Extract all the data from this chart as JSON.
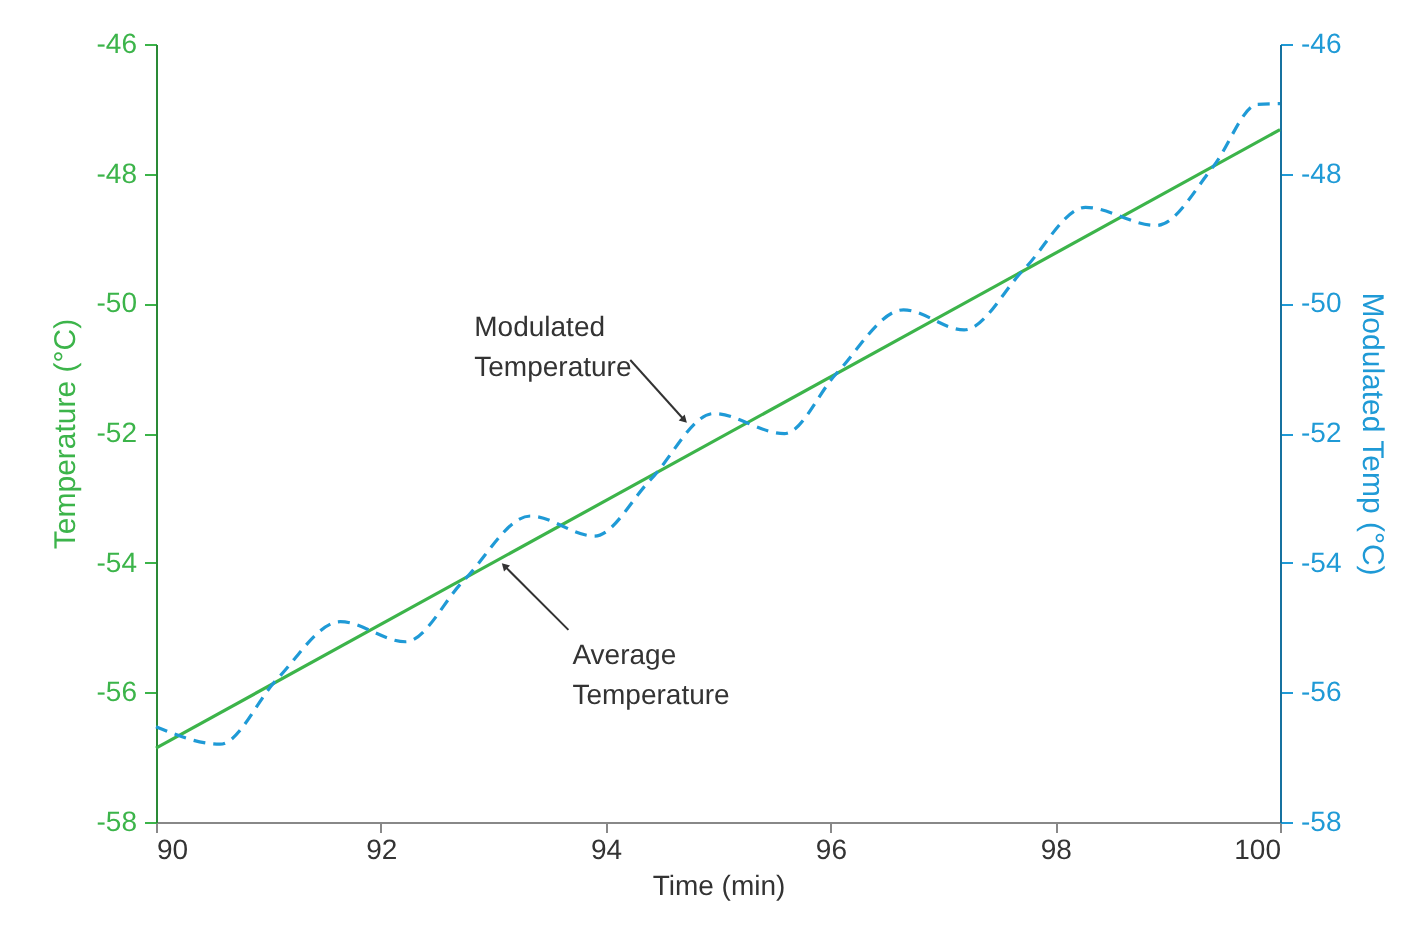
{
  "chart_data": {
    "type": "line",
    "xlabel": "Time (min)",
    "ylabel": "Temperature (°C)",
    "y2label": "Modulated Temp (°C)",
    "xlim": [
      90,
      100
    ],
    "xticks": [
      90,
      92,
      94,
      96,
      98,
      100
    ],
    "ylim": [
      -58,
      -46
    ],
    "yticks": [
      -58,
      -56,
      -54,
      -52,
      -50,
      -48,
      -46
    ],
    "y2lim": [
      -58,
      -46
    ],
    "y2ticks": [
      -58,
      -56,
      -54,
      -52,
      -50,
      -48,
      -46
    ],
    "series": [
      {
        "color": "#3cb44a",
        "line_style": "solid",
        "x": [
          90,
          100
        ],
        "values": [
          -56.86,
          -47.32
        ]
      },
      {
        "color": "#1f9ad6",
        "line_style": "dashed",
        "axis": "y2",
        "x": [
          90.0,
          90.57,
          91.07,
          91.64,
          92.22,
          92.74,
          93.33,
          93.9,
          94.4,
          94.96,
          95.59,
          96.05,
          96.65,
          97.19,
          97.72,
          98.27,
          98.9,
          99.41,
          99.8,
          100.0
        ],
        "values": [
          -56.53,
          -56.8,
          -55.81,
          -54.91,
          -55.22,
          -54.27,
          -53.28,
          -53.59,
          -52.72,
          -51.7,
          -52.01,
          -51.09,
          -50.1,
          -50.41,
          -49.48,
          -48.52,
          -48.8,
          -47.88,
          -46.93,
          -46.92
        ]
      }
    ],
    "annotations": [
      {
        "text": "Modulated\nTemperature",
        "x": 94.7,
        "y": -51.8
      },
      {
        "text": "Average\nTemperature",
        "x": 93.1,
        "y": -54.05
      }
    ]
  }
}
